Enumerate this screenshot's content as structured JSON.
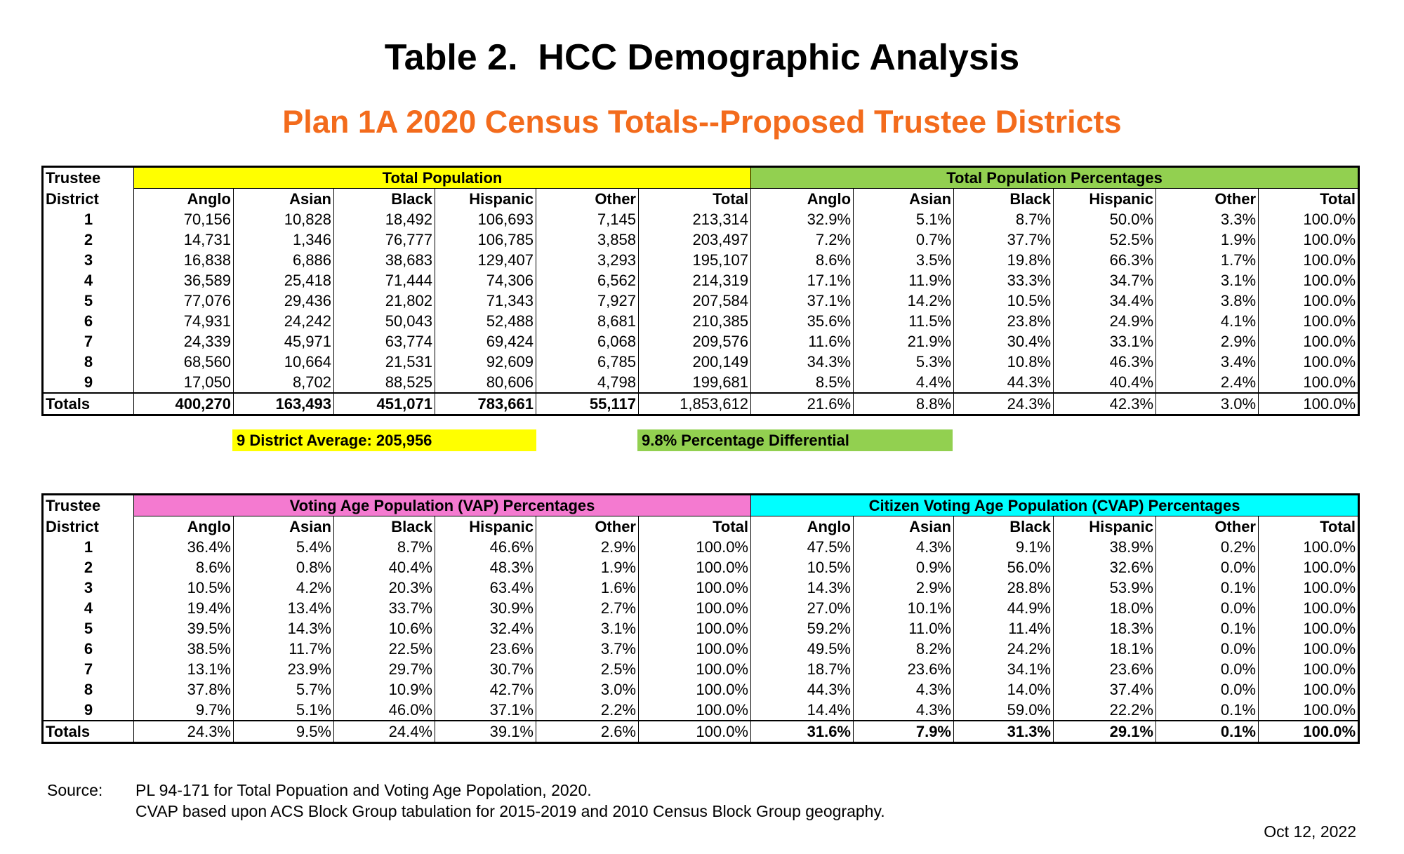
{
  "title": "Table 2.  HCC Demographic Analysis",
  "subtitle": "Plan 1A 2020 Census Totals--Proposed Trustee Districts",
  "table1": {
    "corner": [
      "Trustee",
      "District"
    ],
    "groups": [
      "Total Population",
      "Total Population Percentages"
    ],
    "columns": [
      "Anglo",
      "Asian",
      "Black",
      "Hispanic",
      "Other",
      "Total",
      "Anglo",
      "Asian",
      "Black",
      "Hispanic",
      "Other",
      "Total"
    ],
    "rows": [
      [
        "1",
        "70,156",
        "10,828",
        "18,492",
        "106,693",
        "7,145",
        "213,314",
        "32.9%",
        "5.1%",
        "8.7%",
        "50.0%",
        "3.3%",
        "100.0%"
      ],
      [
        "2",
        "14,731",
        "1,346",
        "76,777",
        "106,785",
        "3,858",
        "203,497",
        "7.2%",
        "0.7%",
        "37.7%",
        "52.5%",
        "1.9%",
        "100.0%"
      ],
      [
        "3",
        "16,838",
        "6,886",
        "38,683",
        "129,407",
        "3,293",
        "195,107",
        "8.6%",
        "3.5%",
        "19.8%",
        "66.3%",
        "1.7%",
        "100.0%"
      ],
      [
        "4",
        "36,589",
        "25,418",
        "71,444",
        "74,306",
        "6,562",
        "214,319",
        "17.1%",
        "11.9%",
        "33.3%",
        "34.7%",
        "3.1%",
        "100.0%"
      ],
      [
        "5",
        "77,076",
        "29,436",
        "21,802",
        "71,343",
        "7,927",
        "207,584",
        "37.1%",
        "14.2%",
        "10.5%",
        "34.4%",
        "3.8%",
        "100.0%"
      ],
      [
        "6",
        "74,931",
        "24,242",
        "50,043",
        "52,488",
        "8,681",
        "210,385",
        "35.6%",
        "11.5%",
        "23.8%",
        "24.9%",
        "4.1%",
        "100.0%"
      ],
      [
        "7",
        "24,339",
        "45,971",
        "63,774",
        "69,424",
        "6,068",
        "209,576",
        "11.6%",
        "21.9%",
        "30.4%",
        "33.1%",
        "2.9%",
        "100.0%"
      ],
      [
        "8",
        "68,560",
        "10,664",
        "21,531",
        "92,609",
        "6,785",
        "200,149",
        "34.3%",
        "5.3%",
        "10.8%",
        "46.3%",
        "3.4%",
        "100.0%"
      ],
      [
        "9",
        "17,050",
        "8,702",
        "88,525",
        "80,606",
        "4,798",
        "199,681",
        "8.5%",
        "4.4%",
        "44.3%",
        "40.4%",
        "2.4%",
        "100.0%"
      ],
      [
        "Totals",
        "400,270",
        "163,493",
        "451,071",
        "783,661",
        "55,117",
        "1,853,612",
        "21.6%",
        "8.8%",
        "24.3%",
        "42.3%",
        "3.0%",
        "100.0%"
      ]
    ],
    "notes": [
      "9 District Average: 205,956",
      "9.8% Percentage Differential"
    ]
  },
  "table2": {
    "corner": [
      "Trustee",
      "District"
    ],
    "groups": [
      "Voting Age Population (VAP) Percentages",
      "Citizen Voting Age Population (CVAP) Percentages"
    ],
    "columns": [
      "Anglo",
      "Asian",
      "Black",
      "Hispanic",
      "Other",
      "Total",
      "Anglo",
      "Asian",
      "Black",
      "Hispanic",
      "Other",
      "Total"
    ],
    "rows": [
      [
        "1",
        "36.4%",
        "5.4%",
        "8.7%",
        "46.6%",
        "2.9%",
        "100.0%",
        "47.5%",
        "4.3%",
        "9.1%",
        "38.9%",
        "0.2%",
        "100.0%"
      ],
      [
        "2",
        "8.6%",
        "0.8%",
        "40.4%",
        "48.3%",
        "1.9%",
        "100.0%",
        "10.5%",
        "0.9%",
        "56.0%",
        "32.6%",
        "0.0%",
        "100.0%"
      ],
      [
        "3",
        "10.5%",
        "4.2%",
        "20.3%",
        "63.4%",
        "1.6%",
        "100.0%",
        "14.3%",
        "2.9%",
        "28.8%",
        "53.9%",
        "0.1%",
        "100.0%"
      ],
      [
        "4",
        "19.4%",
        "13.4%",
        "33.7%",
        "30.9%",
        "2.7%",
        "100.0%",
        "27.0%",
        "10.1%",
        "44.9%",
        "18.0%",
        "0.0%",
        "100.0%"
      ],
      [
        "5",
        "39.5%",
        "14.3%",
        "10.6%",
        "32.4%",
        "3.1%",
        "100.0%",
        "59.2%",
        "11.0%",
        "11.4%",
        "18.3%",
        "0.1%",
        "100.0%"
      ],
      [
        "6",
        "38.5%",
        "11.7%",
        "22.5%",
        "23.6%",
        "3.7%",
        "100.0%",
        "49.5%",
        "8.2%",
        "24.2%",
        "18.1%",
        "0.0%",
        "100.0%"
      ],
      [
        "7",
        "13.1%",
        "23.9%",
        "29.7%",
        "30.7%",
        "2.5%",
        "100.0%",
        "18.7%",
        "23.6%",
        "34.1%",
        "23.6%",
        "0.0%",
        "100.0%"
      ],
      [
        "8",
        "37.8%",
        "5.7%",
        "10.9%",
        "42.7%",
        "3.0%",
        "100.0%",
        "44.3%",
        "4.3%",
        "14.0%",
        "37.4%",
        "0.0%",
        "100.0%"
      ],
      [
        "9",
        "9.7%",
        "5.1%",
        "46.0%",
        "37.1%",
        "2.2%",
        "100.0%",
        "14.4%",
        "4.3%",
        "59.0%",
        "22.2%",
        "0.1%",
        "100.0%"
      ],
      [
        "Totals",
        "24.3%",
        "9.5%",
        "24.4%",
        "39.1%",
        "2.6%",
        "100.0%",
        "31.6%",
        "7.9%",
        "31.3%",
        "29.1%",
        "0.1%",
        "100.0%"
      ]
    ]
  },
  "source": {
    "label": "Source:",
    "lines": [
      "PL 94-171 for Total Popuation and Voting Age Popolation, 2020.",
      "CVAP based upon ACS Block Group tabulation for 2015-2019 and 2010 Census Block Group geography."
    ]
  },
  "date": "Oct 12, 2022"
}
